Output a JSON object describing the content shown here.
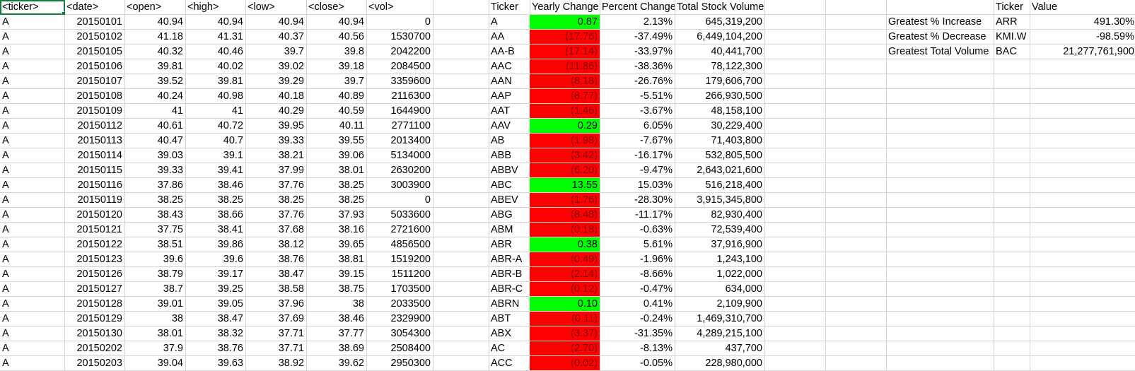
{
  "raw_headers": [
    "<ticker>",
    "<date>",
    "<open>",
    "<high>",
    "<low>",
    "<close>",
    "<vol>"
  ],
  "raw_rows": [
    [
      "A",
      "20150101",
      "40.94",
      "40.94",
      "40.94",
      "40.94",
      "0"
    ],
    [
      "A",
      "20150102",
      "41.18",
      "41.31",
      "40.37",
      "40.56",
      "1530700"
    ],
    [
      "A",
      "20150105",
      "40.32",
      "40.46",
      "39.7",
      "39.8",
      "2042200"
    ],
    [
      "A",
      "20150106",
      "39.81",
      "40.02",
      "39.02",
      "39.18",
      "2084500"
    ],
    [
      "A",
      "20150107",
      "39.52",
      "39.81",
      "39.29",
      "39.7",
      "3359600"
    ],
    [
      "A",
      "20150108",
      "40.24",
      "40.98",
      "40.18",
      "40.89",
      "2116300"
    ],
    [
      "A",
      "20150109",
      "41",
      "41",
      "40.29",
      "40.59",
      "1644900"
    ],
    [
      "A",
      "20150112",
      "40.61",
      "40.72",
      "39.95",
      "40.11",
      "2771100"
    ],
    [
      "A",
      "20150113",
      "40.47",
      "40.7",
      "39.33",
      "39.55",
      "2013400"
    ],
    [
      "A",
      "20150114",
      "39.03",
      "39.1",
      "38.21",
      "39.06",
      "5134000"
    ],
    [
      "A",
      "20150115",
      "39.33",
      "39.41",
      "37.99",
      "38.01",
      "2630200"
    ],
    [
      "A",
      "20150116",
      "37.86",
      "38.46",
      "37.76",
      "38.25",
      "3003900"
    ],
    [
      "A",
      "20150119",
      "38.25",
      "38.25",
      "38.25",
      "38.25",
      "0"
    ],
    [
      "A",
      "20150120",
      "38.43",
      "38.66",
      "37.76",
      "37.93",
      "5033600"
    ],
    [
      "A",
      "20150121",
      "37.75",
      "38.41",
      "37.68",
      "38.16",
      "2721600"
    ],
    [
      "A",
      "20150122",
      "38.51",
      "39.86",
      "38.12",
      "39.65",
      "4856500"
    ],
    [
      "A",
      "20150123",
      "39.6",
      "39.6",
      "38.76",
      "38.81",
      "1519200"
    ],
    [
      "A",
      "20150126",
      "38.79",
      "39.17",
      "38.47",
      "39.15",
      "1511200"
    ],
    [
      "A",
      "20150127",
      "38.7",
      "39.25",
      "38.58",
      "38.75",
      "1703500"
    ],
    [
      "A",
      "20150128",
      "39.01",
      "39.05",
      "37.96",
      "38",
      "2033500"
    ],
    [
      "A",
      "20150129",
      "38",
      "38.47",
      "37.69",
      "38.46",
      "2329900"
    ],
    [
      "A",
      "20150130",
      "38.01",
      "38.32",
      "37.71",
      "37.77",
      "3054300"
    ],
    [
      "A",
      "20150202",
      "37.9",
      "38.76",
      "37.71",
      "38.69",
      "2508400"
    ],
    [
      "A",
      "20150203",
      "39.04",
      "39.63",
      "38.92",
      "39.62",
      "2950300"
    ]
  ],
  "summary_headers": [
    "Ticker",
    "Yearly Change",
    "Percent Change",
    "Total Stock Volume"
  ],
  "summary_rows": [
    {
      "ticker": "A",
      "change": "0.87",
      "status": "positive",
      "percent": "2.13%",
      "volume": "645,319,200"
    },
    {
      "ticker": "AA",
      "change": "(17.76)",
      "status": "negative",
      "percent": "-37.49%",
      "volume": "6,449,104,200"
    },
    {
      "ticker": "AA-B",
      "change": "(17.14)",
      "status": "negative",
      "percent": "-33.97%",
      "volume": "40,441,700"
    },
    {
      "ticker": "AAC",
      "change": "(11.86)",
      "status": "negative",
      "percent": "-38.36%",
      "volume": "78,122,300"
    },
    {
      "ticker": "AAN",
      "change": "(8.18)",
      "status": "negative",
      "percent": "-26.76%",
      "volume": "179,606,700"
    },
    {
      "ticker": "AAP",
      "change": "(8.77)",
      "status": "negative",
      "percent": "-5.51%",
      "volume": "266,930,500"
    },
    {
      "ticker": "AAT",
      "change": "(1.46)",
      "status": "negative",
      "percent": "-3.67%",
      "volume": "48,158,100"
    },
    {
      "ticker": "AAV",
      "change": "0.29",
      "status": "positive",
      "percent": "6.05%",
      "volume": "30,229,400"
    },
    {
      "ticker": "AB",
      "change": "(1.98)",
      "status": "negative",
      "percent": "-7.67%",
      "volume": "71,403,800"
    },
    {
      "ticker": "ABB",
      "change": "(3.42)",
      "status": "negative",
      "percent": "-16.17%",
      "volume": "532,805,500"
    },
    {
      "ticker": "ABBV",
      "change": "(6.20)",
      "status": "negative",
      "percent": "-9.47%",
      "volume": "2,643,021,600"
    },
    {
      "ticker": "ABC",
      "change": "13.55",
      "status": "positive",
      "percent": "15.03%",
      "volume": "516,218,400"
    },
    {
      "ticker": "ABEV",
      "change": "(1.76)",
      "status": "negative",
      "percent": "-28.30%",
      "volume": "3,915,345,800"
    },
    {
      "ticker": "ABG",
      "change": "(8.48)",
      "status": "negative",
      "percent": "-11.17%",
      "volume": "82,930,400"
    },
    {
      "ticker": "ABM",
      "change": "(0.18)",
      "status": "negative",
      "percent": "-0.63%",
      "volume": "72,539,400"
    },
    {
      "ticker": "ABR",
      "change": "0.38",
      "status": "positive",
      "percent": "5.61%",
      "volume": "37,916,900"
    },
    {
      "ticker": "ABR-A",
      "change": "(0.49)",
      "status": "negative",
      "percent": "-1.96%",
      "volume": "1,243,100"
    },
    {
      "ticker": "ABR-B",
      "change": "(2.14)",
      "status": "negative",
      "percent": "-8.66%",
      "volume": "1,022,000"
    },
    {
      "ticker": "ABR-C",
      "change": "(0.12)",
      "status": "negative",
      "percent": "-0.47%",
      "volume": "634,000"
    },
    {
      "ticker": "ABRN",
      "change": "0.10",
      "status": "positive",
      "percent": "0.41%",
      "volume": "2,109,900"
    },
    {
      "ticker": "ABT",
      "change": "(0.11)",
      "status": "negative",
      "percent": "-0.24%",
      "volume": "1,469,310,700"
    },
    {
      "ticker": "ABX",
      "change": "(3.37)",
      "status": "negative",
      "percent": "-31.35%",
      "volume": "4,289,215,100"
    },
    {
      "ticker": "AC",
      "change": "(2.70)",
      "status": "negative",
      "percent": "-8.13%",
      "volume": "437,700"
    },
    {
      "ticker": "ACC",
      "change": "(0.02)",
      "status": "negative",
      "percent": "-0.05%",
      "volume": "228,980,000"
    }
  ],
  "greatest_headers": [
    "Ticker",
    "Value"
  ],
  "greatest_rows": [
    {
      "label": "Greatest % Increase",
      "ticker": "ARR",
      "value": "491.30%"
    },
    {
      "label": "Greatest % Decrease",
      "ticker": "KMI.W",
      "value": "-98.59%"
    },
    {
      "label": "Greatest Total Volume",
      "ticker": "BAC",
      "value": "21,277,761,900"
    }
  ],
  "colors": {
    "positive": "#00ff00",
    "negative": "#ff0000",
    "selection": "#107c41",
    "gridline": "#d4d4d4"
  }
}
